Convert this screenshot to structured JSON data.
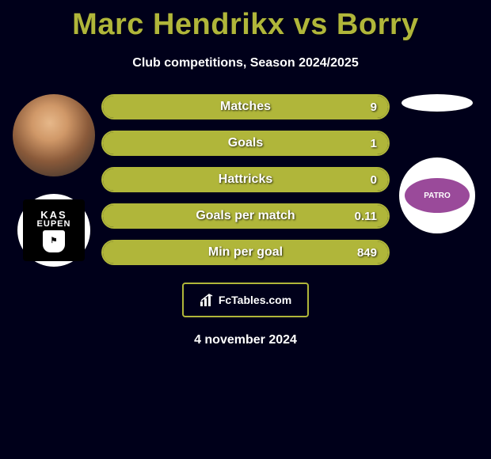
{
  "colors": {
    "accent": "#b0b63a",
    "background": "#00001a",
    "text": "#ffffff"
  },
  "title": "Marc Hendrikx vs Borry",
  "subtitle": "Club competitions, Season 2024/2025",
  "left_player": {
    "name": "Marc Hendrikx",
    "club_top": "KAS",
    "club_bottom": "EUPEN"
  },
  "right_player": {
    "name": "Borry",
    "club_label": "PATRO"
  },
  "stats": [
    {
      "label": "Matches",
      "value": "9",
      "fill_pct": 100
    },
    {
      "label": "Goals",
      "value": "1",
      "fill_pct": 100
    },
    {
      "label": "Hattricks",
      "value": "0",
      "fill_pct": 100
    },
    {
      "label": "Goals per match",
      "value": "0.11",
      "fill_pct": 100
    },
    {
      "label": "Min per goal",
      "value": "849",
      "fill_pct": 100
    }
  ],
  "footer": {
    "brand": "FcTables.com"
  },
  "date": "4 november 2024"
}
